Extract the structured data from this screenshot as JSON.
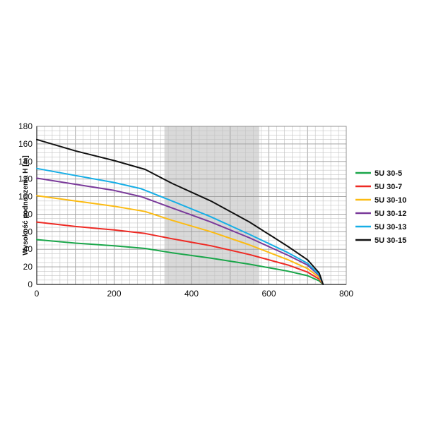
{
  "chart_data": {
    "type": "line",
    "title": "",
    "xlabel": "",
    "ylabel": "Wysokość podnoszenia H [m]",
    "xlim": [
      0,
      800
    ],
    "ylim": [
      0,
      180
    ],
    "x_ticks": [
      "0",
      "200",
      "400",
      "600",
      "800"
    ],
    "y_ticks": [
      "0",
      "20",
      "40",
      "60",
      "80",
      "100",
      "120",
      "140",
      "160",
      "180"
    ],
    "minor_grid_x_step": 20,
    "minor_grid_y_step": 5,
    "grid": true,
    "shaded_region": {
      "x_from": 330,
      "x_to": 575,
      "color": "#d9d9d9"
    },
    "legend_position": "right",
    "series": [
      {
        "name": "5U 30-5",
        "color": "#1aa64a",
        "points": [
          [
            0,
            51
          ],
          [
            100,
            47
          ],
          [
            200,
            44
          ],
          [
            280,
            41
          ],
          [
            350,
            36
          ],
          [
            450,
            30
          ],
          [
            550,
            23
          ],
          [
            650,
            15
          ],
          [
            700,
            10
          ],
          [
            730,
            4
          ],
          [
            740,
            0
          ]
        ]
      },
      {
        "name": "5U 30-7",
        "color": "#ee2a24",
        "points": [
          [
            0,
            71
          ],
          [
            100,
            66
          ],
          [
            200,
            62
          ],
          [
            280,
            58
          ],
          [
            350,
            52
          ],
          [
            450,
            44
          ],
          [
            550,
            34
          ],
          [
            650,
            22
          ],
          [
            700,
            14
          ],
          [
            730,
            6
          ],
          [
            740,
            0
          ]
        ]
      },
      {
        "name": "5U 30-10",
        "color": "#fcbb12",
        "points": [
          [
            0,
            101
          ],
          [
            100,
            95
          ],
          [
            200,
            89
          ],
          [
            280,
            83
          ],
          [
            350,
            73
          ],
          [
            450,
            60
          ],
          [
            550,
            45
          ],
          [
            650,
            28
          ],
          [
            700,
            18
          ],
          [
            730,
            8
          ],
          [
            740,
            0
          ]
        ]
      },
      {
        "name": "5U 30-12",
        "color": "#7a3a9a",
        "points": [
          [
            0,
            121
          ],
          [
            100,
            114
          ],
          [
            200,
            107
          ],
          [
            270,
            100
          ],
          [
            350,
            87
          ],
          [
            450,
            71
          ],
          [
            550,
            53
          ],
          [
            650,
            33
          ],
          [
            700,
            22
          ],
          [
            730,
            10
          ],
          [
            740,
            0
          ]
        ]
      },
      {
        "name": "5U 30-13",
        "color": "#16aee6",
        "points": [
          [
            0,
            132
          ],
          [
            100,
            124
          ],
          [
            200,
            116
          ],
          [
            270,
            109
          ],
          [
            350,
            95
          ],
          [
            450,
            77
          ],
          [
            550,
            57
          ],
          [
            650,
            36
          ],
          [
            700,
            24
          ],
          [
            730,
            11
          ],
          [
            740,
            0
          ]
        ]
      },
      {
        "name": "5U 30-15",
        "color": "#111111",
        "points": [
          [
            0,
            165
          ],
          [
            100,
            152
          ],
          [
            200,
            141
          ],
          [
            280,
            131
          ],
          [
            350,
            115
          ],
          [
            450,
            95
          ],
          [
            550,
            71
          ],
          [
            650,
            43
          ],
          [
            700,
            28
          ],
          [
            730,
            13
          ],
          [
            740,
            0
          ]
        ]
      }
    ]
  }
}
